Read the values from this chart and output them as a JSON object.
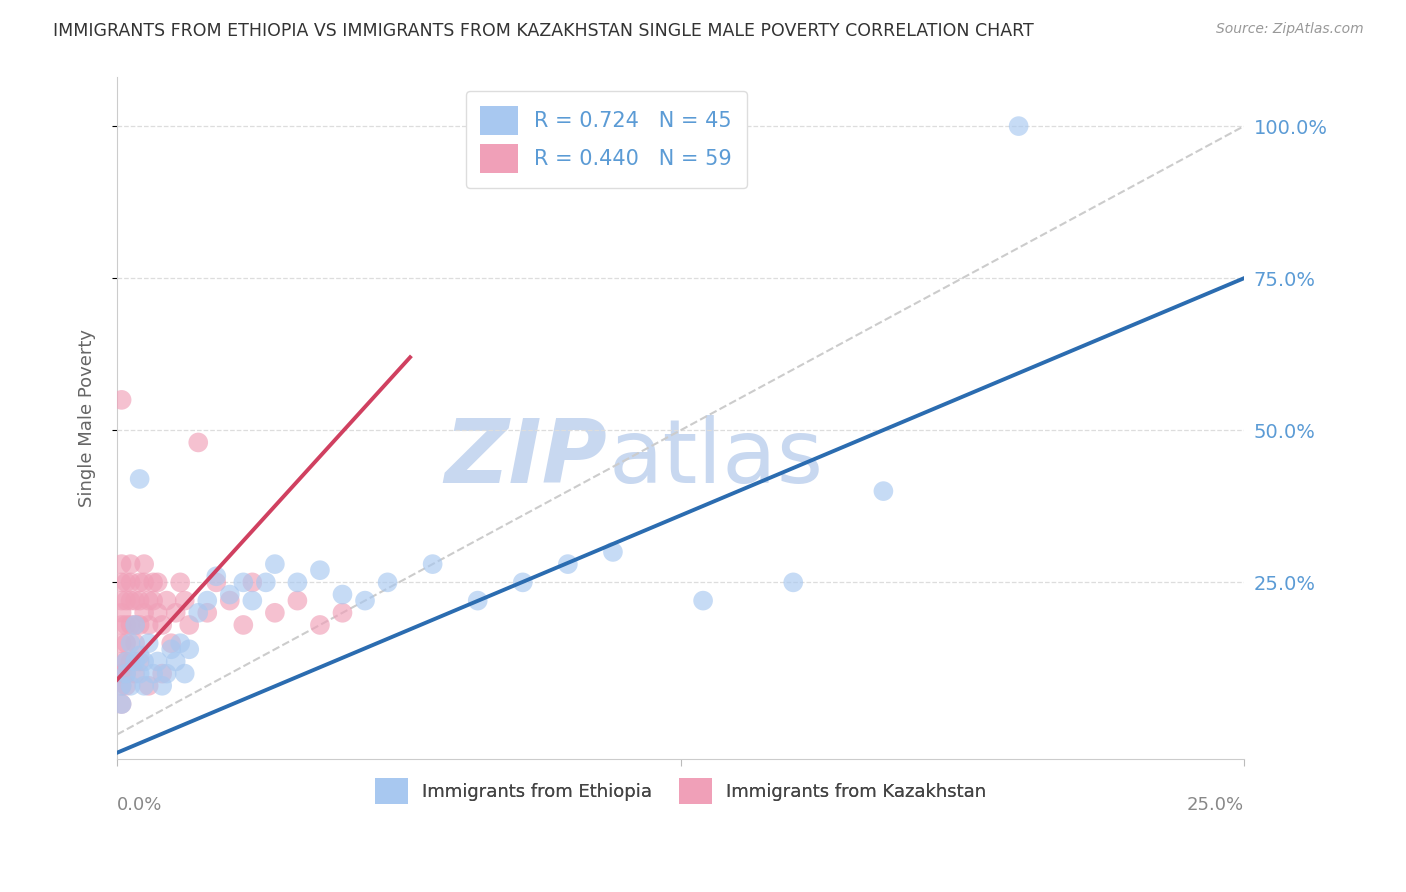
{
  "title": "IMMIGRANTS FROM ETHIOPIA VS IMMIGRANTS FROM KAZAKHSTAN SINGLE MALE POVERTY CORRELATION CHART",
  "source": "Source: ZipAtlas.com",
  "ylabel": "Single Male Poverty",
  "y_tick_labels": [
    "25.0%",
    "50.0%",
    "75.0%",
    "100.0%"
  ],
  "y_tick_positions": [
    0.25,
    0.5,
    0.75,
    1.0
  ],
  "xlim": [
    0.0,
    0.25
  ],
  "ylim": [
    -0.04,
    1.08
  ],
  "color_ethiopia": "#A8C8F0",
  "color_kazakhstan": "#F0A0B8",
  "color_line_ethiopia": "#2B6CB0",
  "color_line_kazakhstan": "#D04060",
  "color_ref_line": "#CCCCCC",
  "watermark_zip": "ZIP",
  "watermark_atlas": "atlas",
  "watermark_color_zip": "#C8D8F0",
  "watermark_color_atlas": "#C8D8F0",
  "background_color": "#FFFFFF",
  "legend_box_color": "#FFFFFF",
  "title_color": "#333333",
  "axis_label_color": "#666666",
  "tick_label_color_right": "#5B9BD5",
  "r_ethiopia": 0.724,
  "n_ethiopia": 45,
  "r_kazakhstan": 0.44,
  "n_kazakhstan": 59,
  "eth_line_x0": 0.0,
  "eth_line_y0": -0.03,
  "eth_line_x1": 0.25,
  "eth_line_y1": 0.75,
  "kaz_line_x0": 0.0,
  "kaz_line_y0": 0.09,
  "kaz_line_x1": 0.065,
  "kaz_line_y1": 0.62,
  "ethiopia_x": [
    0.001,
    0.001,
    0.002,
    0.002,
    0.003,
    0.003,
    0.004,
    0.004,
    0.005,
    0.005,
    0.006,
    0.006,
    0.007,
    0.008,
    0.009,
    0.01,
    0.011,
    0.012,
    0.013,
    0.014,
    0.015,
    0.016,
    0.018,
    0.02,
    0.022,
    0.025,
    0.028,
    0.03,
    0.033,
    0.035,
    0.04,
    0.045,
    0.05,
    0.055,
    0.06,
    0.07,
    0.08,
    0.09,
    0.1,
    0.11,
    0.13,
    0.15,
    0.17,
    0.2,
    0.005
  ],
  "ethiopia_y": [
    0.05,
    0.08,
    0.12,
    0.1,
    0.08,
    0.15,
    0.12,
    0.18,
    0.1,
    0.13,
    0.08,
    0.12,
    0.15,
    0.1,
    0.12,
    0.08,
    0.1,
    0.14,
    0.12,
    0.15,
    0.1,
    0.14,
    0.2,
    0.22,
    0.26,
    0.23,
    0.25,
    0.22,
    0.25,
    0.28,
    0.25,
    0.27,
    0.23,
    0.22,
    0.25,
    0.28,
    0.22,
    0.25,
    0.28,
    0.3,
    0.22,
    0.25,
    0.4,
    1.0,
    0.42
  ],
  "kazakhstan_x": [
    0.001,
    0.001,
    0.001,
    0.001,
    0.001,
    0.001,
    0.001,
    0.001,
    0.001,
    0.001,
    0.002,
    0.002,
    0.002,
    0.002,
    0.002,
    0.002,
    0.002,
    0.003,
    0.003,
    0.003,
    0.003,
    0.003,
    0.004,
    0.004,
    0.004,
    0.004,
    0.005,
    0.005,
    0.005,
    0.005,
    0.006,
    0.006,
    0.006,
    0.007,
    0.007,
    0.007,
    0.008,
    0.008,
    0.009,
    0.009,
    0.01,
    0.01,
    0.011,
    0.012,
    0.013,
    0.014,
    0.015,
    0.016,
    0.018,
    0.02,
    0.022,
    0.025,
    0.028,
    0.03,
    0.035,
    0.04,
    0.045,
    0.05,
    0.001
  ],
  "kazakhstan_y": [
    0.1,
    0.12,
    0.15,
    0.18,
    0.2,
    0.22,
    0.08,
    0.25,
    0.05,
    0.28,
    0.12,
    0.15,
    0.18,
    0.22,
    0.25,
    0.08,
    0.1,
    0.12,
    0.18,
    0.22,
    0.25,
    0.28,
    0.15,
    0.18,
    0.22,
    0.1,
    0.22,
    0.25,
    0.18,
    0.12,
    0.2,
    0.25,
    0.28,
    0.18,
    0.22,
    0.08,
    0.22,
    0.25,
    0.2,
    0.25,
    0.1,
    0.18,
    0.22,
    0.15,
    0.2,
    0.25,
    0.22,
    0.18,
    0.48,
    0.2,
    0.25,
    0.22,
    0.18,
    0.25,
    0.2,
    0.22,
    0.18,
    0.2,
    0.55
  ]
}
